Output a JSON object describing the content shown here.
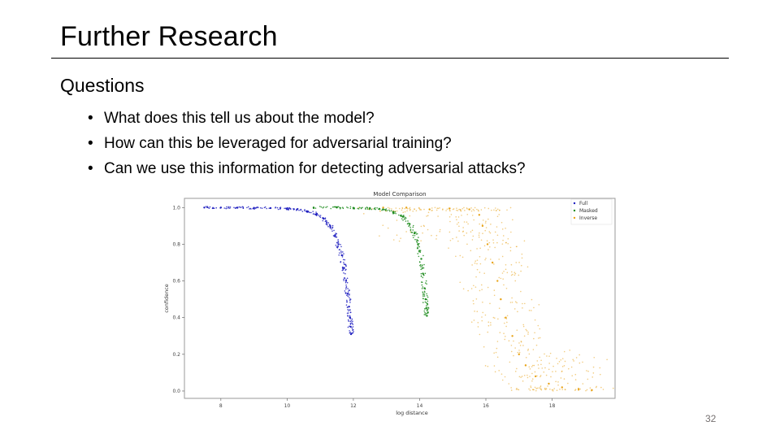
{
  "slide": {
    "title": "Further Research",
    "section_heading": "Questions",
    "bullets": [
      "What does this tell us about the model?",
      "How can this be leveraged for adversarial training?",
      "Can we use this information for detecting adversarial attacks?"
    ],
    "bullet_glyph": "•",
    "page_number": "32"
  },
  "chart_data": {
    "type": "scatter",
    "title": "Model Comparison",
    "xlabel": "log distance",
    "ylabel": "confidence",
    "xlim": [
      6.9,
      19.9
    ],
    "ylim": [
      -0.04,
      1.05
    ],
    "xticks": [
      8,
      10,
      12,
      14,
      16,
      18
    ],
    "yticks": [
      0.0,
      0.2,
      0.4,
      0.6,
      0.8,
      1.0
    ],
    "xtick_labels": [
      "8",
      "10",
      "12",
      "14",
      "16",
      "18"
    ],
    "ytick_labels": [
      "0.0",
      "0.2",
      "0.4",
      "0.6",
      "0.8",
      "1.0"
    ],
    "grid": false,
    "legend_position": "top-right",
    "series": [
      {
        "name": "Full",
        "color": "#1f1fbf",
        "points": [
          [
            7.5,
            1.0
          ],
          [
            8.0,
            1.0
          ],
          [
            8.5,
            0.999
          ],
          [
            9.0,
            0.998
          ],
          [
            9.5,
            0.997
          ],
          [
            10.0,
            0.995
          ],
          [
            10.3,
            0.99
          ],
          [
            10.6,
            0.98
          ],
          [
            10.9,
            0.965
          ],
          [
            11.1,
            0.94
          ],
          [
            11.3,
            0.9
          ],
          [
            11.45,
            0.85
          ],
          [
            11.55,
            0.8
          ],
          [
            11.65,
            0.74
          ],
          [
            11.72,
            0.67
          ],
          [
            11.78,
            0.6
          ],
          [
            11.83,
            0.53
          ],
          [
            11.87,
            0.46
          ],
          [
            11.9,
            0.4
          ],
          [
            11.92,
            0.35
          ],
          [
            11.93,
            0.31
          ]
        ]
      },
      {
        "name": "Masked",
        "color": "#1a8a1a",
        "points": [
          [
            10.8,
            1.0
          ],
          [
            11.5,
            1.0
          ],
          [
            12.0,
            0.998
          ],
          [
            12.5,
            0.996
          ],
          [
            12.9,
            0.99
          ],
          [
            13.2,
            0.975
          ],
          [
            13.5,
            0.95
          ],
          [
            13.7,
            0.91
          ],
          [
            13.85,
            0.86
          ],
          [
            13.95,
            0.8
          ],
          [
            14.05,
            0.72
          ],
          [
            14.1,
            0.64
          ],
          [
            14.15,
            0.56
          ],
          [
            14.18,
            0.5
          ],
          [
            14.2,
            0.45
          ],
          [
            14.22,
            0.41
          ]
        ]
      },
      {
        "name": "Inverse",
        "color": "#e8a317",
        "points": [
          [
            12.9,
            1.0
          ],
          [
            13.6,
            1.0
          ],
          [
            14.3,
            0.99
          ],
          [
            14.9,
            0.995
          ],
          [
            15.5,
            0.99
          ],
          [
            15.8,
            0.96
          ],
          [
            15.9,
            0.9
          ],
          [
            16.05,
            0.8
          ],
          [
            16.2,
            0.7
          ],
          [
            16.35,
            0.6
          ],
          [
            16.45,
            0.5
          ],
          [
            16.6,
            0.4
          ],
          [
            16.8,
            0.3
          ],
          [
            17.0,
            0.2
          ],
          [
            17.2,
            0.14
          ],
          [
            17.5,
            0.08
          ],
          [
            17.9,
            0.04
          ],
          [
            18.3,
            0.02
          ],
          [
            18.8,
            0.01
          ],
          [
            19.2,
            0.005
          ]
        ]
      }
    ]
  }
}
